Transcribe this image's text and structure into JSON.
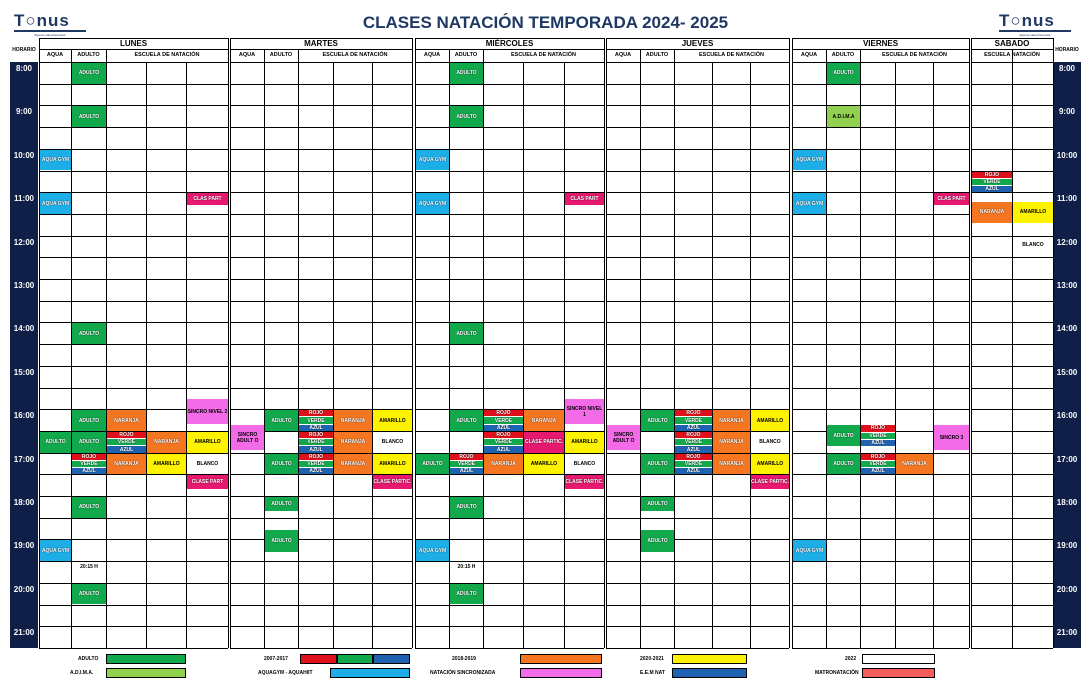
{
  "title": "CLASES NATACIÓN TEMPORADA 2024- 2025",
  "logo": {
    "text": "T○nus",
    "tagline": "deporte salud bienestar"
  },
  "horario": "HORARIO",
  "colors": {
    "green": "#12a84c",
    "lightgreen": "#92d050",
    "red": "#e0101a",
    "blue": "#1f62b0",
    "cyan": "#1daee8",
    "orange": "#f47621",
    "yellow": "#fdf200",
    "pink": "#f46be8",
    "magenta": "#e6186f",
    "salmon": "#f35e5a",
    "navy": "#0f1f47"
  },
  "days": [
    {
      "name": "LUNES",
      "subs": [
        "AQUA",
        "ADULTO",
        "ESCUELA DE NATACIÓN"
      ]
    },
    {
      "name": "MARTES",
      "subs": [
        "AQUA",
        "ADULTO",
        "ESCUELA DE NATACIÓN"
      ]
    },
    {
      "name": "MIÉRCOLES",
      "subs": [
        "AQUA",
        "ADULTO",
        "ESCUELA DE NATACIÓN"
      ]
    },
    {
      "name": "JUEVES",
      "subs": [
        "AQUA",
        "ADULTO",
        "ESCUELA DE NATACIÓN"
      ]
    },
    {
      "name": "VIERNES",
      "subs": [
        "AQUA",
        "ADULTO",
        "ESCUELA DE NATACIÓN"
      ]
    },
    {
      "name": "SABADO",
      "subs": [
        "ESCUELA NATACIÓN"
      ]
    }
  ],
  "times": [
    "8:00",
    "9:00",
    "10:00",
    "11:00",
    "12:00",
    "13:00",
    "14:00",
    "15:00",
    "16:00",
    "17:00",
    "18:00",
    "19:00",
    "20:00",
    "21:00"
  ],
  "blocks": [
    {
      "c": 1,
      "r": 0,
      "h": 1,
      "t": "ADULTO",
      "k": "green"
    },
    {
      "c": 1,
      "r": 2,
      "h": 1,
      "t": "ADULTO",
      "k": "green"
    },
    {
      "c": 0,
      "r": 4,
      "h": 1,
      "t": "AQUA GYM",
      "k": "cyan"
    },
    {
      "c": 0,
      "r": 6,
      "h": 1,
      "t": "AQUA GYM",
      "k": "cyan"
    },
    {
      "c": 4,
      "r": 6,
      "h": 0.6,
      "t": "CLAS PART",
      "k": "magenta"
    },
    {
      "c": 1,
      "r": 12,
      "h": 1,
      "t": "ADULTO",
      "k": "green"
    },
    {
      "c": 1,
      "r": 16,
      "h": 1,
      "t": "ADULTO",
      "k": "green"
    },
    {
      "c": 2,
      "r": 16,
      "h": 1,
      "t": "NARANJA",
      "k": "orange"
    },
    {
      "c": 4,
      "r": 15.5,
      "h": 1.2,
      "t": "SINCRO NIVEL 2",
      "k": "pink"
    },
    {
      "c": 0,
      "r": 17,
      "h": 1,
      "t": "ADULTO",
      "k": "green"
    },
    {
      "c": 1,
      "r": 17,
      "h": 1,
      "t": "ADULTO",
      "k": "green"
    },
    {
      "c": 2,
      "r": 17,
      "h": 0.33,
      "t": "ROJO",
      "k": "red"
    },
    {
      "c": 2,
      "r": 17.33,
      "h": 0.34,
      "t": "VERDE",
      "k": "green"
    },
    {
      "c": 2,
      "r": 17.67,
      "h": 0.33,
      "t": "AZUL",
      "k": "blue"
    },
    {
      "c": 3,
      "r": 17,
      "h": 1,
      "t": "NARANJA",
      "k": "orange"
    },
    {
      "c": 4,
      "r": 17,
      "h": 1,
      "t": "AMARILLO",
      "k": "yellow"
    },
    {
      "c": 1,
      "r": 18,
      "h": 0.33,
      "t": "ROJO",
      "k": "red"
    },
    {
      "c": 1,
      "r": 18.33,
      "h": 0.34,
      "t": "VERDE",
      "k": "green"
    },
    {
      "c": 1,
      "r": 18.67,
      "h": 0.33,
      "t": "AZUL",
      "k": "blue"
    },
    {
      "c": 2,
      "r": 18,
      "h": 1,
      "t": "NARANJA",
      "k": "orange"
    },
    {
      "c": 3,
      "r": 18,
      "h": 1,
      "t": "AMARILLO",
      "k": "yellow"
    },
    {
      "c": 4,
      "r": 18,
      "h": 1,
      "t": "BLANCO",
      "k": "none"
    },
    {
      "c": 4,
      "r": 19,
      "h": 0.7,
      "t": "CLASE PART",
      "k": "magenta"
    },
    {
      "c": 1,
      "r": 20,
      "h": 1,
      "t": "ADULTO",
      "k": "green"
    },
    {
      "c": 0,
      "r": 22,
      "h": 1,
      "t": "AQUA GYM",
      "k": "cyan"
    },
    {
      "c": 1,
      "r": 23,
      "h": 0.5,
      "t": "20:15 H",
      "k": "none"
    },
    {
      "c": 1,
      "r": 24,
      "h": 1,
      "t": "ADULTO",
      "k": "green"
    },
    {
      "c": 5,
      "r": 16.7,
      "h": 1.2,
      "t": "SINCRO ADULT O",
      "k": "pink"
    },
    {
      "c": 6,
      "r": 16,
      "h": 1,
      "t": "ADULTO",
      "k": "green"
    },
    {
      "c": 7,
      "r": 16,
      "h": 0.33,
      "t": "ROJO",
      "k": "red"
    },
    {
      "c": 7,
      "r": 16.33,
      "h": 0.34,
      "t": "VERDE",
      "k": "green"
    },
    {
      "c": 7,
      "r": 16.67,
      "h": 0.33,
      "t": "AZUL",
      "k": "blue"
    },
    {
      "c": 8,
      "r": 16,
      "h": 1,
      "t": "NARANJA",
      "k": "orange"
    },
    {
      "c": 9,
      "r": 16,
      "h": 1,
      "t": "AMARILLO",
      "k": "yellow"
    },
    {
      "c": 7,
      "r": 17,
      "h": 0.33,
      "t": "ROJO",
      "k": "red"
    },
    {
      "c": 7,
      "r": 17.33,
      "h": 0.34,
      "t": "VERDE",
      "k": "green"
    },
    {
      "c": 7,
      "r": 17.67,
      "h": 0.33,
      "t": "AZUL",
      "k": "blue"
    },
    {
      "c": 8,
      "r": 17,
      "h": 1,
      "t": "NARANJA",
      "k": "orange"
    },
    {
      "c": 9,
      "r": 17,
      "h": 1,
      "t": "BLANCO",
      "k": "none"
    },
    {
      "c": 6,
      "r": 18,
      "h": 1,
      "t": "ADULTO",
      "k": "green"
    },
    {
      "c": 7,
      "r": 18,
      "h": 0.33,
      "t": "ROJO",
      "k": "red"
    },
    {
      "c": 7,
      "r": 18.33,
      "h": 0.34,
      "t": "VERDE",
      "k": "green"
    },
    {
      "c": 7,
      "r": 18.67,
      "h": 0.33,
      "t": "AZUL",
      "k": "blue"
    },
    {
      "c": 8,
      "r": 18,
      "h": 1,
      "t": "NARANJA",
      "k": "orange"
    },
    {
      "c": 9,
      "r": 18,
      "h": 1,
      "t": "AMARILLO",
      "k": "yellow"
    },
    {
      "c": 9,
      "r": 19,
      "h": 0.7,
      "t": "CLASE PARTIC.",
      "k": "magenta"
    },
    {
      "c": 6,
      "r": 20,
      "h": 0.7,
      "t": "ADULTO",
      "k": "green"
    },
    {
      "c": 6,
      "r": 21.5,
      "h": 1.1,
      "t": "ADULTO",
      "k": "green"
    },
    {
      "c": 11,
      "r": 0,
      "h": 1,
      "t": "ADULTO",
      "k": "green"
    },
    {
      "c": 11,
      "r": 2,
      "h": 1,
      "t": "ADULTO",
      "k": "green"
    },
    {
      "c": 10,
      "r": 4,
      "h": 1,
      "t": "AQUA GYM",
      "k": "cyan"
    },
    {
      "c": 10,
      "r": 6,
      "h": 1,
      "t": "AQUA GYM",
      "k": "cyan"
    },
    {
      "c": 14,
      "r": 6,
      "h": 0.6,
      "t": "CLAS PART",
      "k": "magenta"
    },
    {
      "c": 11,
      "r": 12,
      "h": 1,
      "t": "ADULTO",
      "k": "green"
    },
    {
      "c": 11,
      "r": 16,
      "h": 1,
      "t": "ADULTO",
      "k": "green"
    },
    {
      "c": 12,
      "r": 16,
      "h": 0.33,
      "t": "ROJO",
      "k": "red"
    },
    {
      "c": 12,
      "r": 16.33,
      "h": 0.34,
      "t": "VERDE",
      "k": "green"
    },
    {
      "c": 12,
      "r": 16.67,
      "h": 0.33,
      "t": "AZUL",
      "k": "blue"
    },
    {
      "c": 13,
      "r": 16,
      "h": 1,
      "t": "NARANJA",
      "k": "orange"
    },
    {
      "c": 14,
      "r": 15.5,
      "h": 1.2,
      "t": "SINCRO NIVEL 1",
      "k": "pink"
    },
    {
      "c": 12,
      "r": 17,
      "h": 0.33,
      "t": "ROJO",
      "k": "red"
    },
    {
      "c": 12,
      "r": 17.33,
      "h": 0.34,
      "t": "VERDE",
      "k": "green"
    },
    {
      "c": 12,
      "r": 17.67,
      "h": 0.33,
      "t": "AZUL",
      "k": "blue"
    },
    {
      "c": 13,
      "r": 17,
      "h": 1,
      "t": "CLASE PARTIC.",
      "k": "magenta"
    },
    {
      "c": 14,
      "r": 17,
      "h": 1,
      "t": "AMARILLO",
      "k": "yellow"
    },
    {
      "c": 10,
      "r": 18,
      "h": 1,
      "t": "ADULTO",
      "k": "green"
    },
    {
      "c": 11,
      "r": 18,
      "h": 0.33,
      "t": "ROJO",
      "k": "red"
    },
    {
      "c": 11,
      "r": 18.33,
      "h": 0.34,
      "t": "VERDE",
      "k": "green"
    },
    {
      "c": 11,
      "r": 18.67,
      "h": 0.33,
      "t": "AZUL",
      "k": "blue"
    },
    {
      "c": 12,
      "r": 18,
      "h": 1,
      "t": "NARANJA",
      "k": "orange"
    },
    {
      "c": 13,
      "r": 18,
      "h": 1,
      "t": "AMARILLO",
      "k": "yellow"
    },
    {
      "c": 14,
      "r": 18,
      "h": 1,
      "t": "BLANCO",
      "k": "none"
    },
    {
      "c": 14,
      "r": 19,
      "h": 0.7,
      "t": "CLASE PARTIC.",
      "k": "magenta"
    },
    {
      "c": 11,
      "r": 20,
      "h": 1,
      "t": "ADULTO",
      "k": "green"
    },
    {
      "c": 10,
      "r": 22,
      "h": 1,
      "t": "AQUA GYM",
      "k": "cyan"
    },
    {
      "c": 11,
      "r": 23,
      "h": 0.5,
      "t": "20:15 H",
      "k": "none"
    },
    {
      "c": 11,
      "r": 24,
      "h": 1,
      "t": "ADULTO",
      "k": "green"
    },
    {
      "c": 15,
      "r": 16.7,
      "h": 1.2,
      "t": "SINCRO ADULT O",
      "k": "pink"
    },
    {
      "c": 16,
      "r": 16,
      "h": 1,
      "t": "ADULTO",
      "k": "green"
    },
    {
      "c": 17,
      "r": 16,
      "h": 0.33,
      "t": "ROJO",
      "k": "red"
    },
    {
      "c": 17,
      "r": 16.33,
      "h": 0.34,
      "t": "VERDE",
      "k": "green"
    },
    {
      "c": 17,
      "r": 16.67,
      "h": 0.33,
      "t": "AZUL",
      "k": "blue"
    },
    {
      "c": 18,
      "r": 16,
      "h": 1,
      "t": "NARANJA",
      "k": "orange"
    },
    {
      "c": 19,
      "r": 16,
      "h": 1,
      "t": "AMARILLO",
      "k": "yellow"
    },
    {
      "c": 17,
      "r": 17,
      "h": 0.33,
      "t": "ROJO",
      "k": "red"
    },
    {
      "c": 17,
      "r": 17.33,
      "h": 0.34,
      "t": "VERDE",
      "k": "green"
    },
    {
      "c": 17,
      "r": 17.67,
      "h": 0.33,
      "t": "AZUL",
      "k": "blue"
    },
    {
      "c": 18,
      "r": 17,
      "h": 1,
      "t": "NARANJA",
      "k": "orange"
    },
    {
      "c": 19,
      "r": 17,
      "h": 1,
      "t": "BLANCO",
      "k": "none"
    },
    {
      "c": 16,
      "r": 18,
      "h": 1,
      "t": "ADULTO",
      "k": "green"
    },
    {
      "c": 17,
      "r": 18,
      "h": 0.33,
      "t": "ROJO",
      "k": "red"
    },
    {
      "c": 17,
      "r": 18.33,
      "h": 0.34,
      "t": "VERDE",
      "k": "green"
    },
    {
      "c": 17,
      "r": 18.67,
      "h": 0.33,
      "t": "AZUL",
      "k": "blue"
    },
    {
      "c": 18,
      "r": 18,
      "h": 1,
      "t": "NARANJA",
      "k": "orange"
    },
    {
      "c": 19,
      "r": 18,
      "h": 1,
      "t": "AMARILLO",
      "k": "yellow"
    },
    {
      "c": 19,
      "r": 19,
      "h": 0.7,
      "t": "CLASE PARTIC.",
      "k": "magenta"
    },
    {
      "c": 16,
      "r": 20,
      "h": 0.7,
      "t": "ADULTO",
      "k": "green"
    },
    {
      "c": 16,
      "r": 21.5,
      "h": 1.1,
      "t": "ADULTO",
      "k": "green"
    },
    {
      "c": 21,
      "r": 0,
      "h": 1,
      "t": "ADULTO",
      "k": "green"
    },
    {
      "c": 21,
      "r": 2,
      "h": 1,
      "t": "A.D.I.M.A",
      "k": "lightgreen"
    },
    {
      "c": 20,
      "r": 4,
      "h": 1,
      "t": "AQUA GYM",
      "k": "cyan"
    },
    {
      "c": 20,
      "r": 6,
      "h": 1,
      "t": "AQUA GYM",
      "k": "cyan"
    },
    {
      "c": 24,
      "r": 6,
      "h": 0.6,
      "t": "CLAS PART",
      "k": "magenta"
    },
    {
      "c": 21,
      "r": 16.7,
      "h": 1,
      "t": "ADULTO",
      "k": "green"
    },
    {
      "c": 22,
      "r": 16.7,
      "h": 0.33,
      "t": "ROJO",
      "k": "red"
    },
    {
      "c": 22,
      "r": 17.03,
      "h": 0.34,
      "t": "VERDE",
      "k": "green"
    },
    {
      "c": 22,
      "r": 17.37,
      "h": 0.33,
      "t": "AZUL",
      "k": "blue"
    },
    {
      "c": 24,
      "r": 16.7,
      "h": 1.2,
      "t": "SINCRO 3",
      "k": "pink"
    },
    {
      "c": 21,
      "r": 18,
      "h": 1,
      "t": "ADULTO",
      "k": "green"
    },
    {
      "c": 22,
      "r": 18,
      "h": 0.33,
      "t": "ROJO",
      "k": "red"
    },
    {
      "c": 22,
      "r": 18.33,
      "h": 0.34,
      "t": "VERDE",
      "k": "green"
    },
    {
      "c": 22,
      "r": 18.67,
      "h": 0.33,
      "t": "AZUL",
      "k": "blue"
    },
    {
      "c": 23,
      "r": 18,
      "h": 1,
      "t": "NARANJA",
      "k": "orange"
    },
    {
      "c": 20,
      "r": 22,
      "h": 1,
      "t": "AQUA GYM",
      "k": "cyan"
    },
    {
      "c": 25,
      "r": 5,
      "h": 0.33,
      "t": "ROJO",
      "k": "red"
    },
    {
      "c": 25,
      "r": 5.33,
      "h": 0.34,
      "t": "VERDE",
      "k": "green"
    },
    {
      "c": 25,
      "r": 5.67,
      "h": 0.33,
      "t": "AZUL",
      "k": "blue"
    },
    {
      "c": 25,
      "r": 6.4,
      "h": 1,
      "t": "NARANJA",
      "k": "orange"
    },
    {
      "c": 26,
      "r": 6.4,
      "h": 1,
      "t": "AMARILLO",
      "k": "yellow"
    },
    {
      "c": 26,
      "r": 8,
      "h": 0.8,
      "t": "BLANCO",
      "k": "none"
    }
  ],
  "legend": [
    {
      "label": "ADULTO",
      "swatches": [
        "green"
      ]
    },
    {
      "label": "A.D.I.M.A.",
      "swatches": [
        "lightgreen"
      ]
    },
    {
      "label": "2007-2017",
      "swatches": [
        "red",
        "green",
        "blue"
      ]
    },
    {
      "label": "AQUAGYM - AQUAHIIT",
      "swatches": [
        "cyan"
      ]
    },
    {
      "label": "2018-2019",
      "swatches": [
        "orange"
      ]
    },
    {
      "label": "NATACIÓN SINCRONIZADA",
      "swatches": [
        "pink"
      ]
    },
    {
      "label": "2020-2021",
      "swatches": [
        "yellow"
      ]
    },
    {
      "label": "E.E.M NAT",
      "swatches": [
        "blue"
      ]
    },
    {
      "label": "2022",
      "swatches": [
        "none"
      ]
    },
    {
      "label": "MATRONATACIÓN",
      "swatches": [
        "salmon"
      ]
    }
  ]
}
